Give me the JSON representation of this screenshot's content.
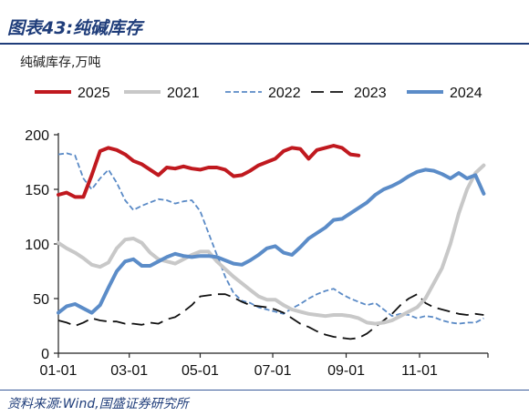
{
  "header": {
    "title": "图表43:纯碱库存"
  },
  "unit_label": "纯碱库存,万吨",
  "source": "资料来源:Wind,国盛证券研究所",
  "chart_data": {
    "type": "line",
    "ylabel": "纯碱库存,万吨",
    "ylim": [
      0,
      200
    ],
    "y_ticks": [
      "0",
      "50",
      "100",
      "150",
      "200"
    ],
    "x_ticks": [
      "01-01",
      "03-01",
      "05-01",
      "07-01",
      "09-01",
      "11-01"
    ],
    "x_tick_weeks": [
      0,
      8.5,
      17,
      25.7,
      34.5,
      43.3
    ],
    "x_range_weeks": [
      0,
      51.5
    ],
    "grid": false,
    "legend_position": "top",
    "series": [
      {
        "name": "2025",
        "color": "#c0191f",
        "style": "solid",
        "width": 4,
        "x": [
          0,
          1,
          2,
          3,
          4,
          5,
          6,
          7,
          8,
          9,
          10,
          11,
          12,
          13,
          14,
          15,
          16,
          17,
          18,
          19,
          20,
          21,
          22,
          23,
          24,
          25,
          26,
          27,
          28,
          29,
          30,
          31,
          32,
          33,
          34,
          35,
          36
        ],
        "y": [
          145,
          147,
          143,
          143,
          163,
          185,
          188,
          186,
          182,
          176,
          173,
          168,
          163,
          170,
          169,
          171,
          169,
          168,
          170,
          170,
          168,
          162,
          163,
          167,
          172,
          175,
          178,
          185,
          188,
          187,
          178,
          186,
          188,
          190,
          188,
          182,
          181
        ]
      },
      {
        "name": "2021",
        "color": "#c8c8c8",
        "style": "solid",
        "width": 4,
        "x": [
          0,
          1,
          2,
          3,
          4,
          5,
          6,
          7,
          8,
          9,
          10,
          11,
          12,
          13,
          14,
          15,
          16,
          17,
          18,
          19,
          20,
          21,
          22,
          23,
          24,
          25,
          26,
          27,
          28,
          29,
          30,
          31,
          32,
          33,
          34,
          35,
          36,
          37,
          38,
          39,
          40,
          41,
          42,
          43,
          44,
          45,
          46,
          47,
          48,
          49,
          50,
          51
        ],
        "y": [
          101,
          96,
          92,
          87,
          81,
          79,
          83,
          96,
          104,
          105,
          101,
          92,
          86,
          84,
          82,
          86,
          90,
          93,
          93,
          84,
          77,
          70,
          64,
          58,
          52,
          49,
          49,
          44,
          40,
          38,
          36,
          35,
          34,
          35,
          35,
          34,
          32,
          28,
          27,
          28,
          30,
          34,
          38,
          42,
          50,
          64,
          78,
          100,
          128,
          150,
          165,
          172
        ]
      },
      {
        "name": "2022",
        "color": "#5a8ac6",
        "style": "dashed",
        "width": 1.8,
        "x": [
          0,
          1,
          2,
          3,
          4,
          5,
          6,
          7,
          8,
          9,
          10,
          11,
          12,
          13,
          14,
          15,
          16,
          17,
          18,
          19,
          20,
          21,
          22,
          23,
          24,
          25,
          26,
          27,
          28,
          29,
          30,
          31,
          32,
          33,
          34,
          35,
          36,
          37,
          38,
          39,
          40,
          41,
          42,
          43,
          44,
          45,
          46,
          47,
          48,
          49,
          50,
          51
        ],
        "y": [
          182,
          183,
          181,
          160,
          150,
          160,
          168,
          156,
          140,
          131,
          135,
          138,
          141,
          140,
          137,
          139,
          140,
          130,
          110,
          90,
          70,
          55,
          48,
          46,
          42,
          40,
          38,
          36,
          41,
          45,
          50,
          54,
          57,
          59,
          54,
          50,
          47,
          44,
          46,
          40,
          34,
          36,
          35,
          32,
          34,
          33,
          30,
          28,
          27,
          28,
          28,
          32
        ]
      },
      {
        "name": "2023",
        "color": "#111111",
        "style": "long-dash",
        "width": 1.8,
        "x": [
          0,
          1,
          2,
          3,
          4,
          5,
          6,
          7,
          8,
          9,
          10,
          11,
          12,
          13,
          14,
          15,
          16,
          17,
          18,
          19,
          20,
          21,
          22,
          23,
          24,
          25,
          26,
          27,
          28,
          29,
          30,
          31,
          32,
          33,
          34,
          35,
          36,
          37,
          38,
          39,
          40,
          41,
          42,
          43,
          44,
          45,
          46,
          47,
          48,
          49,
          50,
          51
        ],
        "y": [
          30,
          28,
          25,
          28,
          32,
          30,
          29,
          29,
          27,
          27,
          26,
          28,
          27,
          31,
          33,
          38,
          44,
          52,
          53,
          54,
          54,
          51,
          47,
          44,
          43,
          42,
          40,
          37,
          32,
          27,
          24,
          20,
          17,
          15,
          14,
          13,
          14,
          18,
          24,
          30,
          36,
          44,
          50,
          54,
          46,
          42,
          40,
          38,
          36,
          35,
          36,
          35
        ]
      },
      {
        "name": "2024",
        "color": "#5b8cc8",
        "style": "solid",
        "width": 4,
        "x": [
          0,
          1,
          2,
          3,
          4,
          5,
          6,
          7,
          8,
          9,
          10,
          11,
          12,
          13,
          14,
          15,
          16,
          17,
          18,
          19,
          20,
          21,
          22,
          23,
          24,
          25,
          26,
          27,
          28,
          29,
          30,
          31,
          32,
          33,
          34,
          35,
          36,
          37,
          38,
          39,
          40,
          41,
          42,
          43,
          44,
          45,
          46,
          47,
          48,
          49,
          50,
          51
        ],
        "y": [
          37,
          43,
          45,
          41,
          37,
          44,
          60,
          75,
          84,
          86,
          80,
          80,
          84,
          88,
          91,
          89,
          88,
          89,
          89,
          88,
          85,
          82,
          81,
          85,
          90,
          96,
          98,
          92,
          90,
          97,
          105,
          110,
          115,
          122,
          123,
          128,
          133,
          138,
          145,
          150,
          153,
          157,
          162,
          166,
          168,
          167,
          164,
          160,
          165,
          160,
          163,
          146
        ]
      }
    ]
  }
}
